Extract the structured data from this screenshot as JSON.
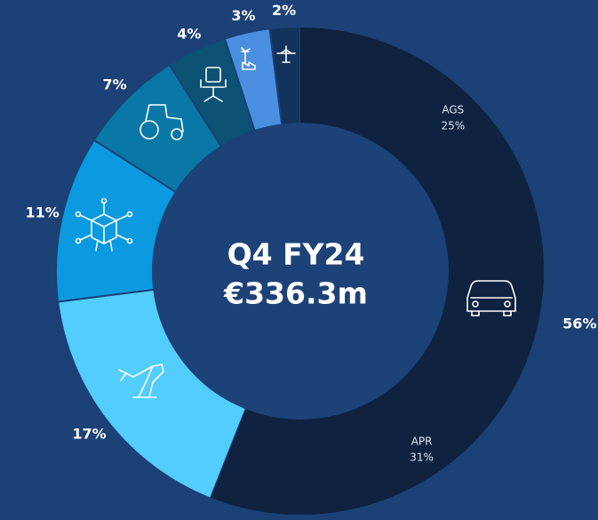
{
  "chart_data": {
    "type": "donut",
    "title": "Q4 FY24",
    "subtitle": "€336.3m",
    "values": [
      56,
      17,
      11,
      7,
      4,
      3,
      2
    ],
    "value_labels": [
      "56%",
      "17%",
      "11%",
      "7%",
      "4%",
      "3%",
      "2%"
    ],
    "colors": [
      "#0f2340",
      "#52cdfd",
      "#0b9ae0",
      "#0a78a6",
      "#0b5275",
      "#4b8fe0",
      "#12335c"
    ],
    "sub_segments": {
      "parent": 0,
      "names": [
        "AGS",
        "APR"
      ],
      "values": [
        25,
        31
      ],
      "value_labels": [
        "25%",
        "31%"
      ]
    }
  }
}
